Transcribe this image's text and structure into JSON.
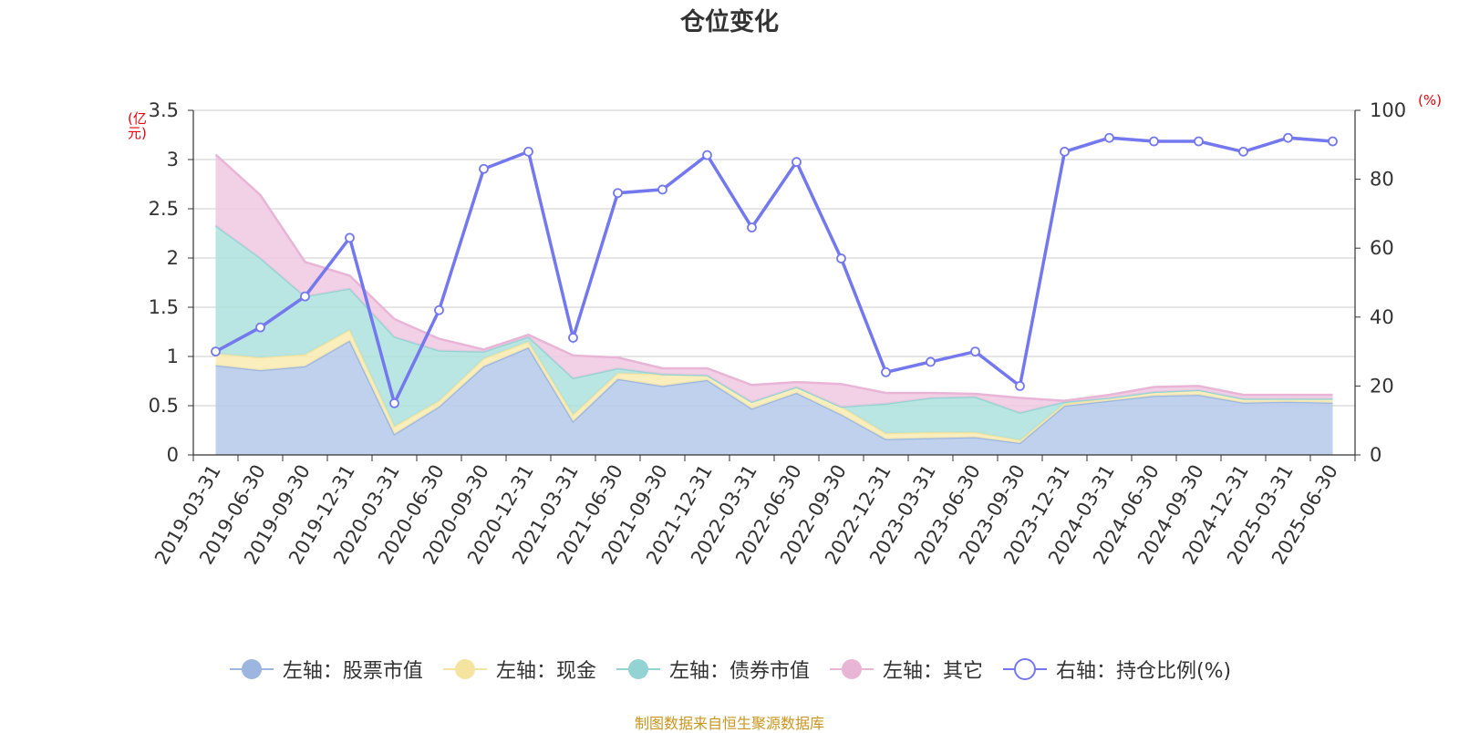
{
  "title": "仓位变化",
  "source_text": "制图数据来自恒生聚源数据库",
  "chart_data": {
    "type": "area",
    "stacked": true,
    "title": "仓位变化",
    "left_axis": {
      "unit": "(亿元)",
      "ylim": [
        0,
        3.5
      ],
      "ticks": [
        "0",
        "0.5",
        "1",
        "1.5",
        "2",
        "2.5",
        "3",
        "3.5"
      ]
    },
    "right_axis": {
      "unit": "(%)",
      "ylim": [
        0,
        100
      ],
      "ticks": [
        "0",
        "20",
        "40",
        "60",
        "80",
        "100"
      ]
    },
    "grid": true,
    "legend_position": "bottom",
    "categories": [
      "2019-03-31",
      "2019-06-30",
      "2019-09-30",
      "2019-12-31",
      "2020-03-31",
      "2020-06-30",
      "2020-09-30",
      "2020-12-31",
      "2021-03-31",
      "2021-06-30",
      "2021-09-30",
      "2021-12-31",
      "2022-03-31",
      "2022-06-30",
      "2022-09-30",
      "2022-12-31",
      "2023-03-31",
      "2023-06-30",
      "2023-09-30",
      "2023-12-31",
      "2024-03-31",
      "2024-06-30",
      "2024-09-30",
      "2024-12-31",
      "2025-03-31",
      "2025-06-30"
    ],
    "series": [
      {
        "name": "左轴：股票市值",
        "axis": "left",
        "kind": "area",
        "color": "#9db6e0",
        "fill": "#b4c9ea",
        "values": [
          0.91,
          0.86,
          0.9,
          1.16,
          0.21,
          0.49,
          0.9,
          1.09,
          0.34,
          0.77,
          0.7,
          0.76,
          0.47,
          0.63,
          0.41,
          0.16,
          0.17,
          0.18,
          0.12,
          0.5,
          0.55,
          0.6,
          0.61,
          0.53,
          0.54,
          0.53
        ]
      },
      {
        "name": "左轴：现金",
        "axis": "left",
        "kind": "area",
        "color": "#f5e4a0",
        "fill": "#f8ebb0",
        "values": [
          0.12,
          0.13,
          0.12,
          0.11,
          0.08,
          0.06,
          0.08,
          0.06,
          0.07,
          0.06,
          0.12,
          0.05,
          0.07,
          0.06,
          0.08,
          0.06,
          0.06,
          0.05,
          0.03,
          0.02,
          0.03,
          0.04,
          0.05,
          0.04,
          0.03,
          0.04
        ]
      },
      {
        "name": "左轴：债券市值",
        "axis": "left",
        "kind": "area",
        "color": "#94d3d3",
        "fill": "#ade0dd",
        "values": [
          1.3,
          1.01,
          0.59,
          0.42,
          0.91,
          0.51,
          0.07,
          0.05,
          0.37,
          0.05,
          0.0,
          0.0,
          0.0,
          0.0,
          0.0,
          0.3,
          0.35,
          0.36,
          0.28,
          0.02,
          0.0,
          0.0,
          0.0,
          0.0,
          0.0,
          0.0
        ]
      },
      {
        "name": "左轴：其它",
        "axis": "left",
        "kind": "area",
        "color": "#e8b5d6",
        "fill": "#f0c8e0",
        "values": [
          0.72,
          0.64,
          0.35,
          0.13,
          0.18,
          0.12,
          0.02,
          0.02,
          0.23,
          0.11,
          0.06,
          0.07,
          0.17,
          0.05,
          0.23,
          0.11,
          0.05,
          0.03,
          0.15,
          0.01,
          0.03,
          0.05,
          0.04,
          0.04,
          0.04,
          0.04
        ]
      },
      {
        "name": "右轴：持仓比例(%)",
        "axis": "right",
        "kind": "line",
        "color": "#7478ee",
        "values": [
          30,
          37,
          46,
          63,
          15,
          42,
          83,
          88,
          34,
          76,
          77,
          87,
          66,
          85,
          57,
          24,
          27,
          30,
          20,
          88,
          92,
          91,
          91,
          88,
          92,
          91
        ]
      }
    ]
  }
}
